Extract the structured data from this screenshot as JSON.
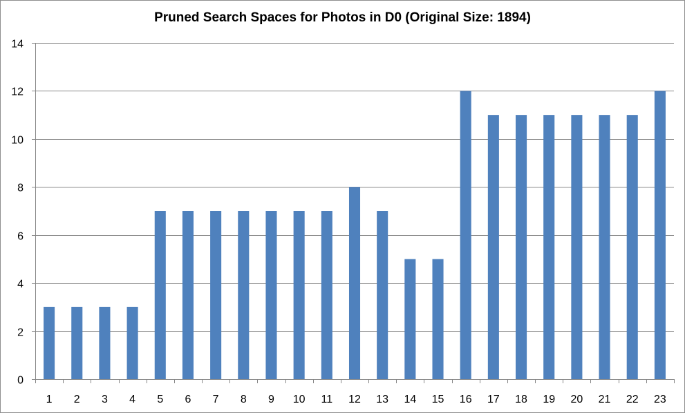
{
  "chart_data": {
    "type": "bar",
    "title": "Pruned Search Spaces for Photos in D0 (Original Size: 1894)",
    "xlabel": "",
    "ylabel": "",
    "categories": [
      "1",
      "2",
      "3",
      "4",
      "5",
      "6",
      "7",
      "8",
      "9",
      "10",
      "11",
      "12",
      "13",
      "14",
      "15",
      "16",
      "17",
      "18",
      "19",
      "20",
      "21",
      "22",
      "23"
    ],
    "values": [
      3,
      3,
      3,
      3,
      7,
      7,
      7,
      7,
      7,
      7,
      7,
      8,
      7,
      5,
      5,
      12,
      11,
      11,
      11,
      11,
      11,
      11,
      12
    ],
    "ylim": [
      0,
      14
    ],
    "yticks": [
      0,
      2,
      4,
      6,
      8,
      10,
      12,
      14
    ],
    "grid": true,
    "legend": "none",
    "colors": {
      "bar": "#4f81bd",
      "grid": "#868686",
      "axis": "#868686"
    }
  }
}
